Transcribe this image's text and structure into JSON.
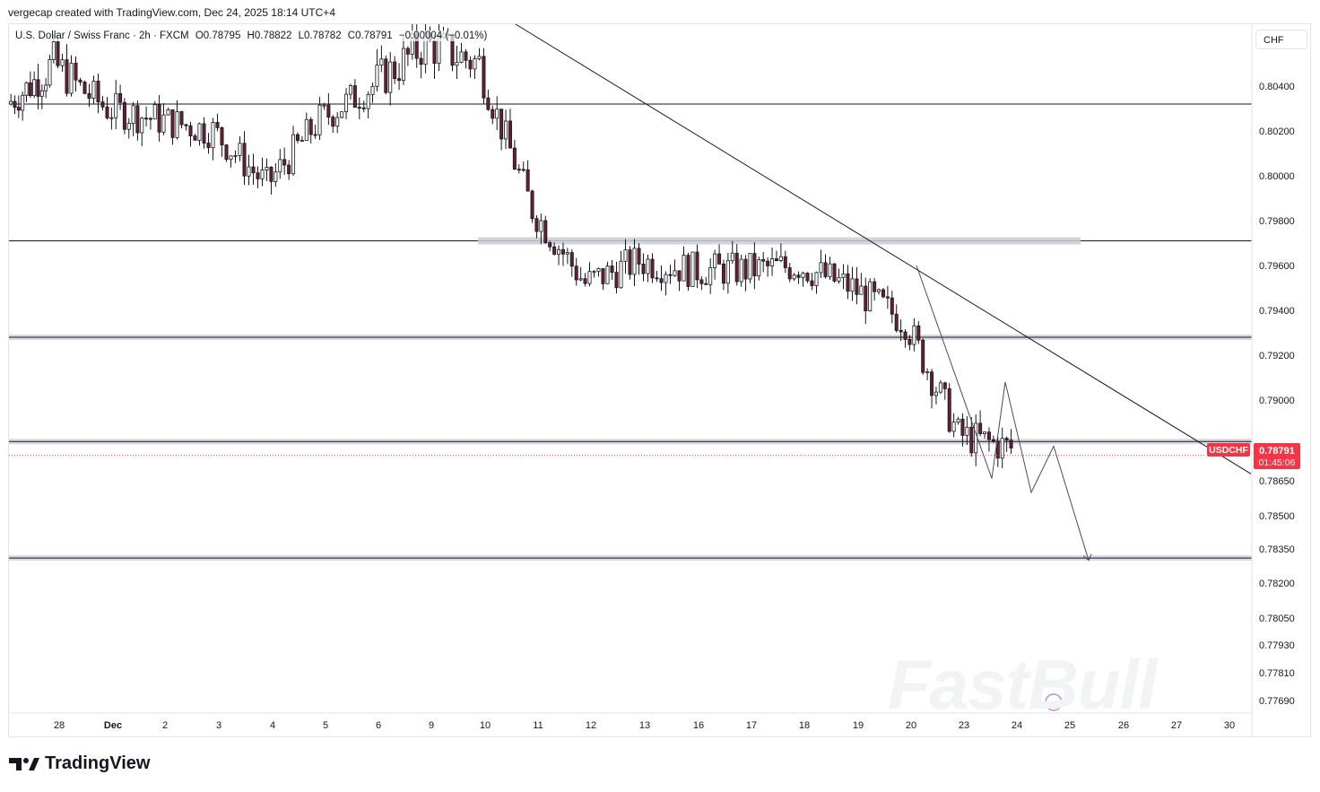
{
  "header": {
    "credit": "vergecap created with TradingView.com, Dec 24, 2025 18:14 UTC+4"
  },
  "symbol": {
    "name": "U.S. Dollar / Swiss Franc · 2h · FXCM",
    "open": "O0.78795",
    "high": "H0.78822",
    "low": "L0.78782",
    "close": "C0.78791",
    "change": "−0.00004 (−0.01%)"
  },
  "currency_button": "CHF",
  "footer": {
    "brand": "TradingView"
  },
  "watermark": "FastBull",
  "price_tag": {
    "ticker": "USDCHF",
    "price": "0.78791",
    "countdown": "01:45:06"
  },
  "colors": {
    "up": "#089981",
    "down": "#f23645",
    "candle_body": "#131722",
    "tag_bg": "#f23645"
  },
  "chart_data": {
    "type": "candlestick",
    "title": "",
    "ylim": [
      0.7763,
      0.8062
    ],
    "y_ticks": [
      "0.80400",
      "0.80200",
      "0.80000",
      "0.79800",
      "0.79600",
      "0.79400",
      "0.79200",
      "0.79000",
      "0.78650",
      "0.78500",
      "0.78350",
      "0.78200",
      "0.78050",
      "0.77930",
      "0.77810",
      "0.77690"
    ],
    "x_ticks": [
      "28",
      "Dec",
      "2",
      "3",
      "4",
      "5",
      "6",
      "9",
      "10",
      "11",
      "12",
      "13",
      "16",
      "17",
      "18",
      "19",
      "20",
      "23",
      "24",
      "25",
      "26",
      "27",
      "30"
    ],
    "close_path": [
      {
        "date": "Nov 27",
        "close": 0.8032
      },
      {
        "date": "Nov 28",
        "close": 0.8048
      },
      {
        "date": "Dec 1",
        "close": 0.803
      },
      {
        "date": "Dec 2",
        "close": 0.8025
      },
      {
        "date": "Dec 3",
        "close": 0.802
      },
      {
        "date": "Dec 4",
        "close": 0.7996
      },
      {
        "date": "Dec 5",
        "close": 0.8025
      },
      {
        "date": "Dec 8",
        "close": 0.804
      },
      {
        "date": "Dec 9",
        "close": 0.8055
      },
      {
        "date": "Dec 10",
        "close": 0.8048
      },
      {
        "date": "Dec 11",
        "close": 0.7985
      },
      {
        "date": "Dec 12",
        "close": 0.7952
      },
      {
        "date": "Dec 15",
        "close": 0.7962
      },
      {
        "date": "Dec 16",
        "close": 0.7958
      },
      {
        "date": "Dec 17",
        "close": 0.7958
      },
      {
        "date": "Dec 18",
        "close": 0.796
      },
      {
        "date": "Dec 19",
        "close": 0.795
      },
      {
        "date": "Dec 22",
        "close": 0.7935
      },
      {
        "date": "Dec 23",
        "close": 0.7885
      },
      {
        "date": "Dec 24",
        "close": 0.78791
      }
    ],
    "horizontal_levels": [
      {
        "price": 0.8032,
        "style": "line"
      },
      {
        "price": 0.7971,
        "style": "line"
      },
      {
        "price": 0.7928,
        "style": "zone"
      },
      {
        "price": 0.7882,
        "style": "zone"
      },
      {
        "price": 0.7831,
        "style": "zone"
      }
    ],
    "resistance_zone": {
      "price": 0.7971,
      "from": "Dec 10",
      "to": "Dec 24"
    },
    "trendline": {
      "from": {
        "date": "Dec 10",
        "price": 0.8063
      },
      "to": {
        "date": "Dec 30",
        "price": 0.7868
      }
    },
    "projection_path": [
      {
        "date": "Dec 22",
        "price": 0.796
      },
      {
        "date": "Dec 23",
        "price": 0.7866
      },
      {
        "date": "Dec 23",
        "price": 0.7908
      },
      {
        "date": "Dec 24",
        "price": 0.786
      },
      {
        "date": "Dec 24",
        "price": 0.788
      },
      {
        "date": "Dec 25",
        "price": 0.783
      }
    ]
  }
}
